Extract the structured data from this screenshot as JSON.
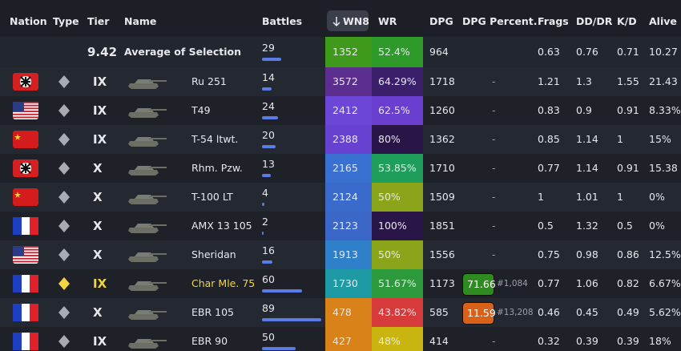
{
  "headers": [
    "Nation",
    "Type",
    "Tier",
    "Name",
    "Battles",
    "WN8",
    "WR",
    "DPG",
    "DPG Percent.",
    "Frags",
    "DD/DR",
    "K/D",
    "Alive"
  ],
  "average": {
    "tier": 9.42,
    "name": "Average of Selection",
    "battles": 29,
    "wn8": 1352,
    "wr": "52.4%",
    "dpg": 964,
    "frags": 0.63,
    "dd_dr": 0.76,
    "kd": 0.71,
    "alive": "10.27"
  },
  "rows": [
    {
      "tier": "IX",
      "name": "Ru 251",
      "battles": 14,
      "wn8": 3572,
      "wr": "64.29%",
      "dpg": 1718,
      "dpg_percent": "-",
      "frags": 1.21,
      "dd_dr": 1.3,
      "kd": 1.55,
      "alive": "21.43"
    },
    {
      "tier": "IX",
      "name": "T49",
      "battles": 24,
      "wn8": 2412,
      "wr": "62.5%",
      "dpg": 1260,
      "dpg_percent": "-",
      "frags": 0.83,
      "dd_dr": 0.9,
      "kd": 0.91,
      "alive": "8.33%"
    },
    {
      "tier": "IX",
      "name": "T-54 ltwt.",
      "battles": 20,
      "wn8": 2388,
      "wr": "80%",
      "dpg": 1362,
      "dpg_percent": "-",
      "frags": 0.85,
      "dd_dr": 1.14,
      "kd": 1,
      "alive": "15%"
    },
    {
      "tier": "X",
      "name": "Rhm. Pzw.",
      "battles": 13,
      "wn8": 2165,
      "wr": "53.85%",
      "dpg": 1710,
      "dpg_percent": "-",
      "frags": 0.77,
      "dd_dr": 1.14,
      "kd": 0.91,
      "alive": "15.38"
    },
    {
      "tier": "X",
      "name": "T-100 LT",
      "battles": 4,
      "wn8": 2124,
      "wr": "50%",
      "dpg": 1509,
      "dpg_percent": "-",
      "frags": 1,
      "dd_dr": 1.01,
      "kd": 1,
      "alive": "0%"
    },
    {
      "tier": "X",
      "name": "AMX 13 105",
      "battles": 2,
      "wn8": 2123,
      "wr": "100%",
      "dpg": 1851,
      "dpg_percent": "-",
      "frags": 0.5,
      "dd_dr": 1.32,
      "kd": 0.5,
      "alive": "0%"
    },
    {
      "tier": "X",
      "name": "Sheridan",
      "battles": 16,
      "wn8": 1913,
      "wr": "50%",
      "dpg": 1556,
      "dpg_percent": "-",
      "frags": 0.75,
      "dd_dr": 0.98,
      "kd": 0.86,
      "alive": "12.5%"
    },
    {
      "tier": "IX",
      "name": "Char Mle. 75",
      "battles": 60,
      "wn8": 1730,
      "wr": "51.67%",
      "dpg": 1173,
      "dpg_percent": 71.66,
      "dpg_rank": "#1,084",
      "frags": 0.77,
      "dd_dr": 1.06,
      "kd": 0.82,
      "alive": "6.67%"
    },
    {
      "tier": "X",
      "name": "EBR 105",
      "battles": 89,
      "wn8": 478,
      "wr": "43.82%",
      "dpg": 585,
      "dpg_percent": 11.59,
      "dpg_rank": "#13,208",
      "frags": 0.46,
      "dd_dr": 0.45,
      "kd": 0.49,
      "alive": "5.62%"
    },
    {
      "tier": "IX",
      "name": "EBR 90",
      "battles": 50,
      "wn8": 427,
      "wr": "48%",
      "dpg": 414,
      "dpg_percent": "-",
      "frags": 0.32,
      "dd_dr": 0.39,
      "kd": 0.39,
      "alive": "18%"
    }
  ]
}
